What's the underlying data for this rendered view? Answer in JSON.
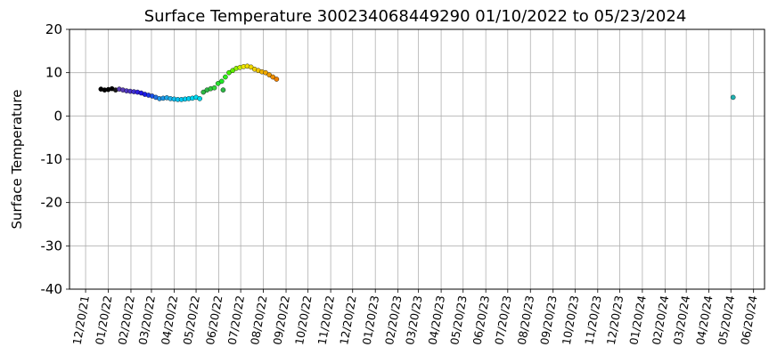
{
  "chart_data": {
    "type": "scatter",
    "title": "Surface Temperature 300234068449290  01/10/2022 to 05/23/2024",
    "y_label": "Surface Temperature",
    "xlim": [
      "2021-11-28",
      "2024-07-05"
    ],
    "ylim": [
      -40,
      20
    ],
    "yticks": [
      -40,
      -30,
      -20,
      -10,
      0,
      10,
      20
    ],
    "xticks": [
      {
        "value": "2021-12-20",
        "label": "12/20/21"
      },
      {
        "value": "2022-01-20",
        "label": "01/20/22"
      },
      {
        "value": "2022-02-20",
        "label": "02/20/22"
      },
      {
        "value": "2022-03-20",
        "label": "03/20/22"
      },
      {
        "value": "2022-04-20",
        "label": "04/20/22"
      },
      {
        "value": "2022-05-20",
        "label": "05/20/22"
      },
      {
        "value": "2022-06-20",
        "label": "06/20/22"
      },
      {
        "value": "2022-07-20",
        "label": "07/20/22"
      },
      {
        "value": "2022-08-20",
        "label": "08/20/22"
      },
      {
        "value": "2022-09-20",
        "label": "09/20/22"
      },
      {
        "value": "2022-10-20",
        "label": "10/20/22"
      },
      {
        "value": "2022-11-20",
        "label": "11/20/22"
      },
      {
        "value": "2022-12-20",
        "label": "12/20/22"
      },
      {
        "value": "2023-01-20",
        "label": "01/20/23"
      },
      {
        "value": "2023-02-20",
        "label": "02/20/23"
      },
      {
        "value": "2023-03-20",
        "label": "03/20/23"
      },
      {
        "value": "2023-04-20",
        "label": "04/20/23"
      },
      {
        "value": "2023-05-20",
        "label": "05/20/23"
      },
      {
        "value": "2023-06-20",
        "label": "06/20/23"
      },
      {
        "value": "2023-07-20",
        "label": "07/20/23"
      },
      {
        "value": "2023-08-20",
        "label": "08/20/23"
      },
      {
        "value": "2023-09-20",
        "label": "09/20/23"
      },
      {
        "value": "2023-10-20",
        "label": "10/20/23"
      },
      {
        "value": "2023-11-20",
        "label": "11/20/23"
      },
      {
        "value": "2023-12-20",
        "label": "12/20/23"
      },
      {
        "value": "2024-01-20",
        "label": "01/20/24"
      },
      {
        "value": "2024-02-20",
        "label": "02/20/24"
      },
      {
        "value": "2024-03-20",
        "label": "03/20/24"
      },
      {
        "value": "2024-04-20",
        "label": "04/20/24"
      },
      {
        "value": "2024-05-20",
        "label": "05/20/24"
      },
      {
        "value": "2024-06-20",
        "label": "06/20/24"
      }
    ],
    "grid": true,
    "series": [
      {
        "x": [
          "2022-01-10",
          "2022-01-15",
          "2022-01-20",
          "2022-01-25",
          "2022-01-30",
          "2022-02-04",
          "2022-02-09",
          "2022-02-14",
          "2022-02-19",
          "2022-02-24",
          "2022-03-01",
          "2022-03-06",
          "2022-03-11",
          "2022-03-16",
          "2022-03-21",
          "2022-03-26",
          "2022-03-31",
          "2022-04-05",
          "2022-04-10",
          "2022-04-15",
          "2022-04-20",
          "2022-04-25",
          "2022-04-30",
          "2022-05-05",
          "2022-05-10",
          "2022-05-15",
          "2022-05-20",
          "2022-05-25",
          "2022-05-30",
          "2022-06-04",
          "2022-06-09",
          "2022-06-14",
          "2022-06-19",
          "2022-06-24",
          "2022-06-29",
          "2022-07-04",
          "2022-07-09",
          "2022-07-14",
          "2022-07-19",
          "2022-07-24",
          "2022-07-29",
          "2022-08-03",
          "2022-08-08",
          "2022-08-13",
          "2022-08-18",
          "2022-08-23",
          "2022-08-28",
          "2022-09-02",
          "2022-09-07",
          "2022-06-26",
          "2024-05-23"
        ],
        "values": [
          6.2,
          6.0,
          6.1,
          6.3,
          6.0,
          6.2,
          6.0,
          5.8,
          5.7,
          5.6,
          5.5,
          5.3,
          5.0,
          4.8,
          4.6,
          4.3,
          4.0,
          4.1,
          4.2,
          4.0,
          3.9,
          3.8,
          3.8,
          3.9,
          4.0,
          4.1,
          4.3,
          4.0,
          5.5,
          6.0,
          6.3,
          6.5,
          7.5,
          8.0,
          9.0,
          10.0,
          10.5,
          11.0,
          11.2,
          11.4,
          11.5,
          11.3,
          10.8,
          10.5,
          10.2,
          10.0,
          9.5,
          9.0,
          8.5,
          6.0,
          4.3
        ],
        "colors": [
          "#000000",
          "#000000",
          "#000000",
          "#000000",
          "#1a1a1a",
          "#5a3cb4",
          "#5a3cb4",
          "#5038c0",
          "#4830c8",
          "#4030d0",
          "#3020e0",
          "#2018e6",
          "#1a1ae6",
          "#1a30e6",
          "#1a50e6",
          "#1e70e6",
          "#1e96e6",
          "#1e96e6",
          "#1ea8e8",
          "#1eb4ec",
          "#10bcee",
          "#08c4f0",
          "#00c8f0",
          "#00ccf0",
          "#00d0f0",
          "#00d4f0",
          "#00d8f0",
          "#00d8e8",
          "#2eb846",
          "#2eb846",
          "#30c840",
          "#30d838",
          "#28e030",
          "#20e828",
          "#30f020",
          "#40f000",
          "#60f000",
          "#90f000",
          "#c8f000",
          "#f0e800",
          "#f0e000",
          "#f0d800",
          "#f0d000",
          "#f0c400",
          "#f0b400",
          "#f0a800",
          "#f09c00",
          "#f09000",
          "#f08000",
          "#2eb846",
          "#20b0b0"
        ]
      }
    ]
  }
}
